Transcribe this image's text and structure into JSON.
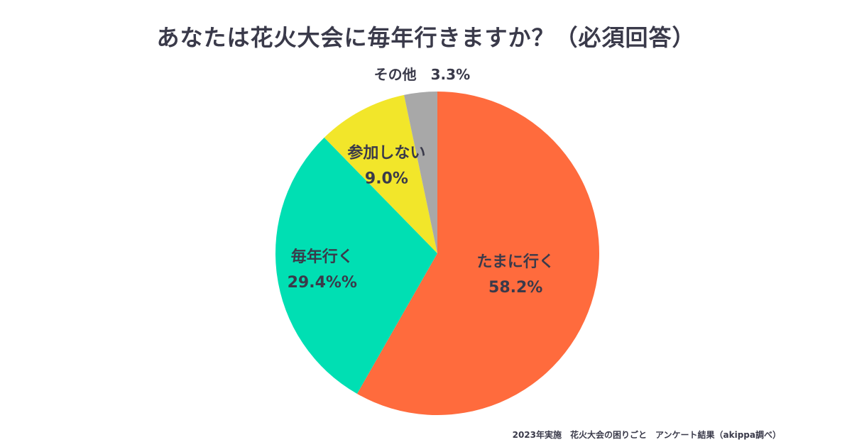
{
  "title": "あなたは花火大会に毎年行きますか？（必須回答）",
  "footer": "2023年実施　花火大会の困りごと　アンケート結果（akippa調べ）",
  "chart_data": {
    "type": "pie",
    "title": "あなたは花火大会に毎年行きますか？（必須回答）",
    "start": "12 o'clock, clockwise",
    "slices": [
      {
        "name": "たまに行く",
        "value": 58.2,
        "label": "58.2%",
        "color": "#FF6B3D"
      },
      {
        "name": "毎年行く",
        "value": 29.4,
        "label": "29.4%%",
        "color": "#00DFB3"
      },
      {
        "name": "参加しない",
        "value": 9.0,
        "label": "9.0%",
        "color": "#F2E62A"
      },
      {
        "name": "その他",
        "value": 3.3,
        "label": "3.3%",
        "color": "#A8A8A8"
      }
    ],
    "other_label_text": "その他　3.3%"
  }
}
